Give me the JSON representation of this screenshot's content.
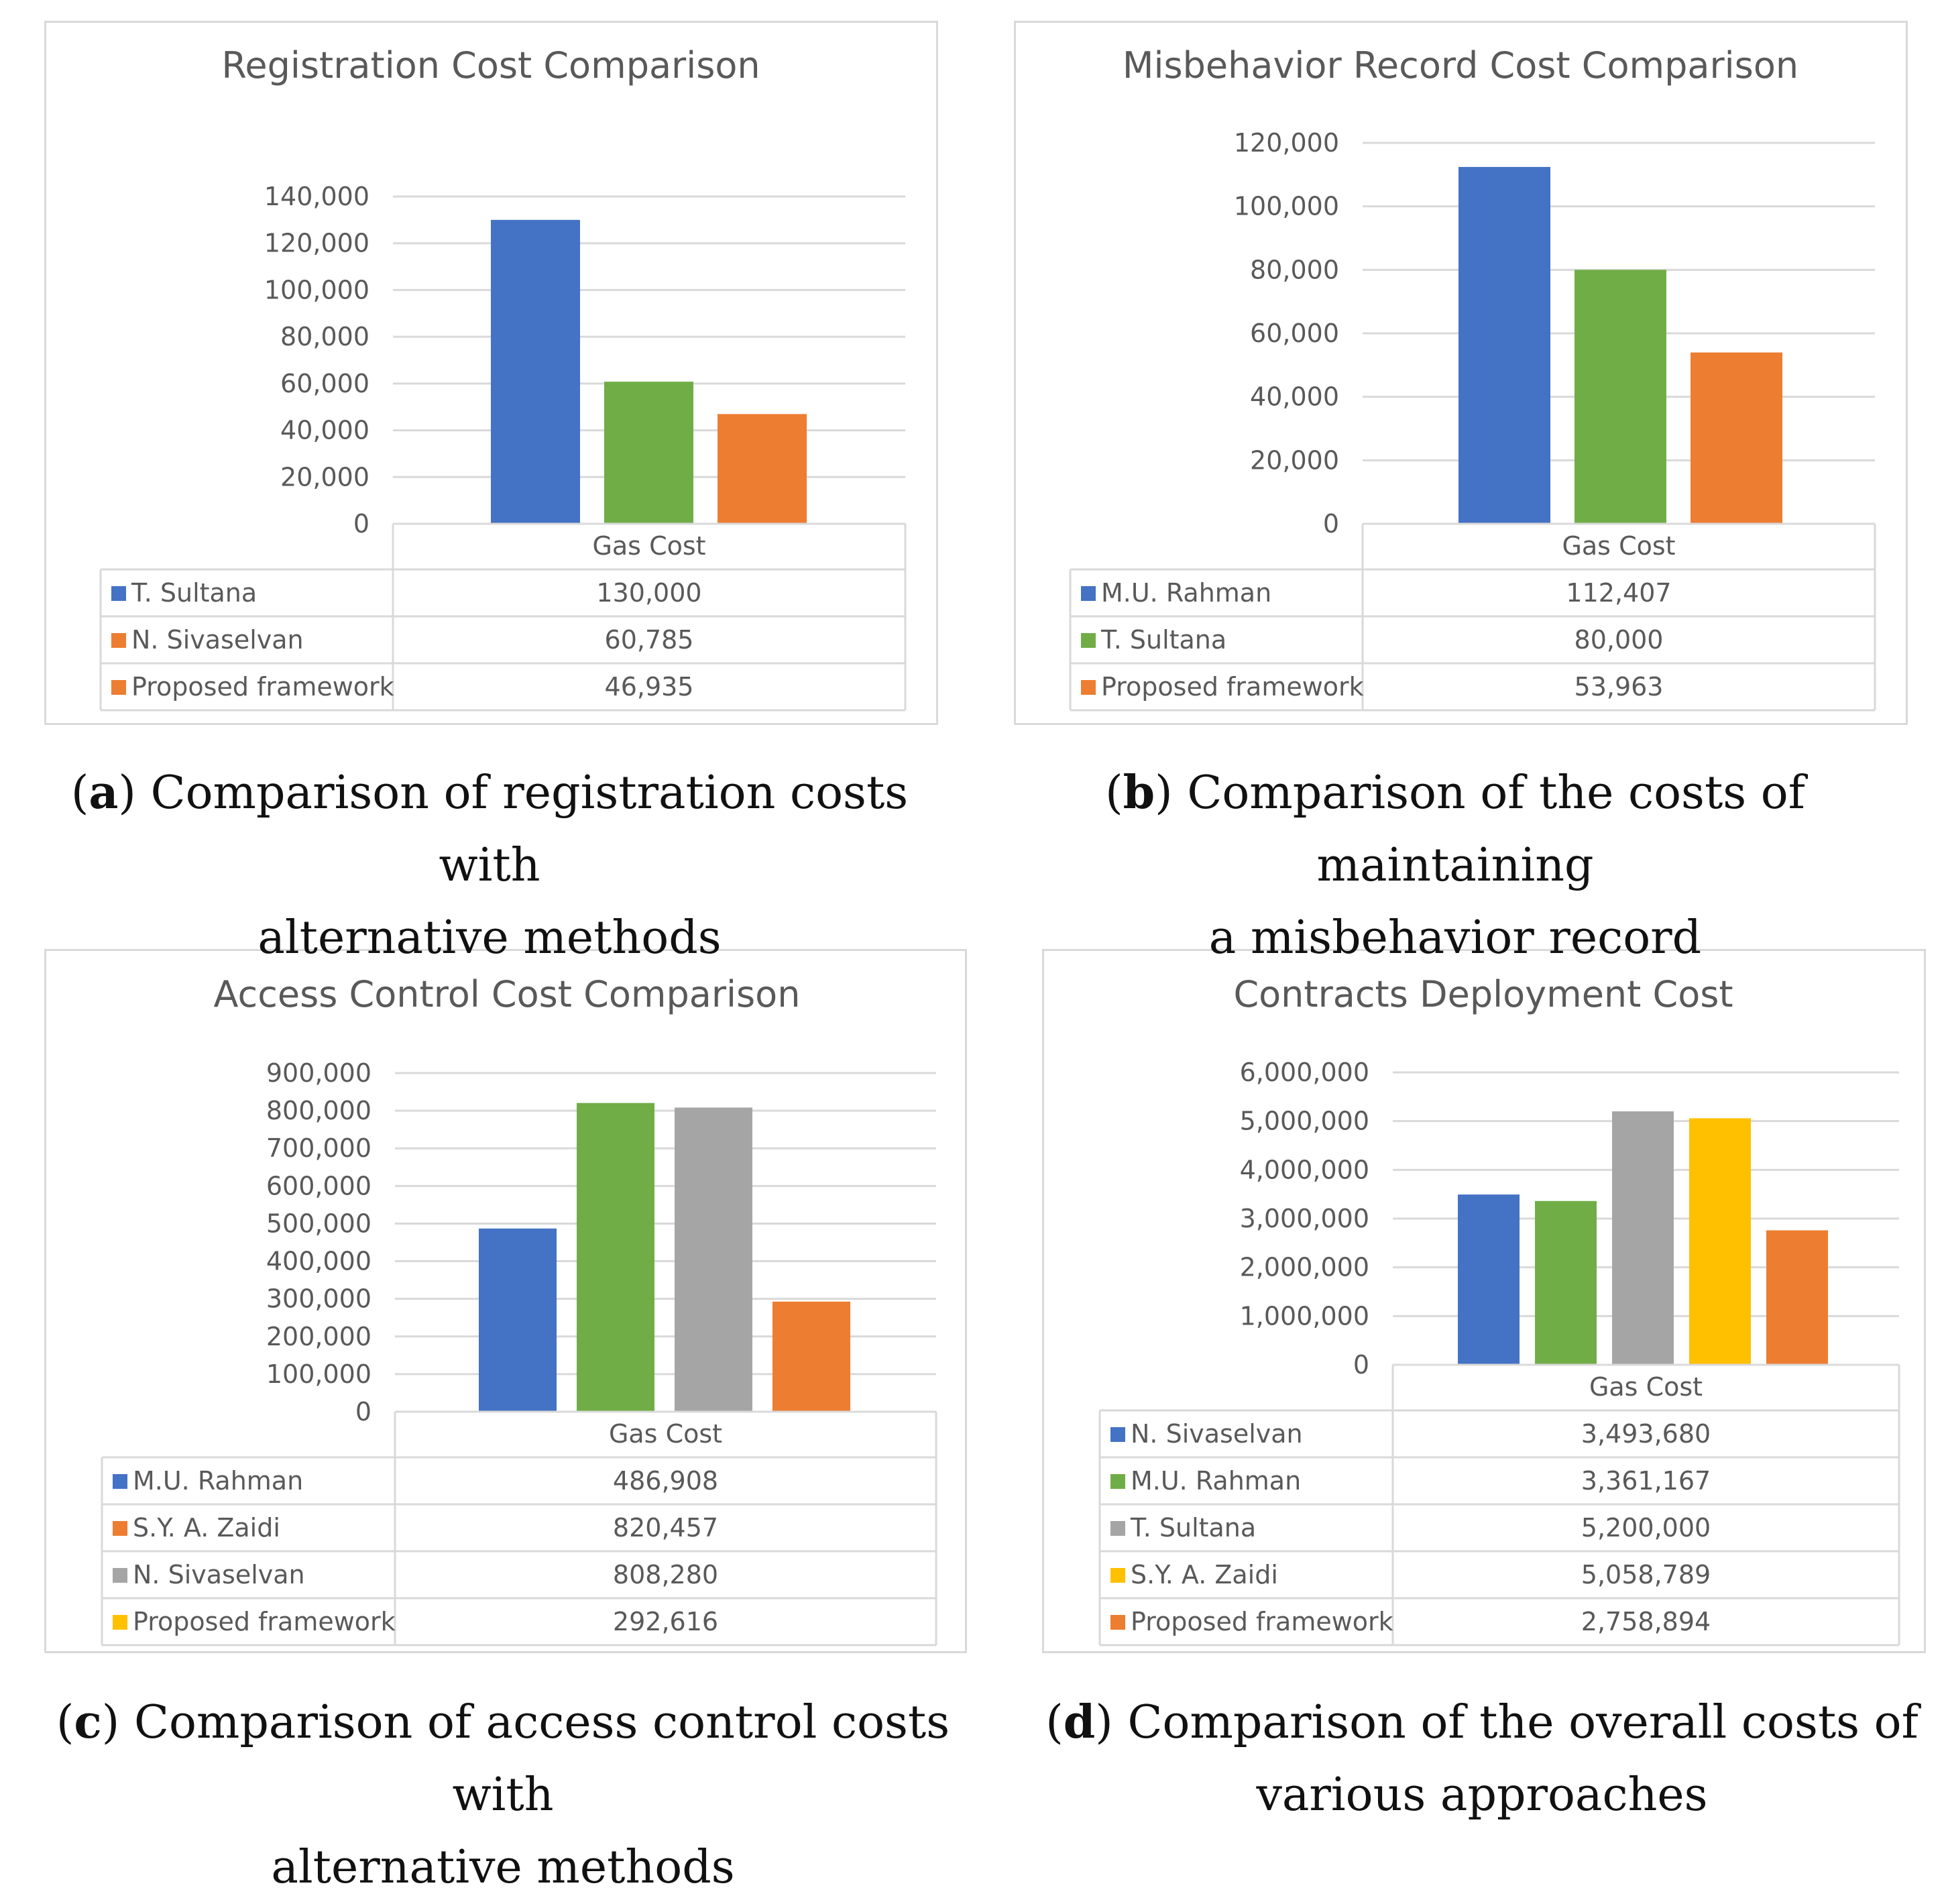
{
  "figure": {
    "panels": [
      {
        "id": "a",
        "caption_letter": "a",
        "caption_line1": "Comparison of registration costs with",
        "caption_line2": "alternative methods",
        "chart_data": {
          "type": "bar",
          "title": "Registration Cost Comparison",
          "categories": [
            "Gas Cost"
          ],
          "series": [
            {
              "name": "T. Sultana",
              "values": [
                130000
              ],
              "value_label": "130,000",
              "bar_color": "#4472c4",
              "legend_color": "#4472c4"
            },
            {
              "name": "N. Sivaselvan",
              "values": [
                60785
              ],
              "value_label": "60,785",
              "bar_color": "#70ad47",
              "legend_color": "#ed7d31"
            },
            {
              "name": "Proposed framework",
              "values": [
                46935
              ],
              "value_label": "46,935",
              "bar_color": "#ed7d31",
              "legend_color": "#ed7d31"
            }
          ],
          "yticks": [
            "0",
            "20,000",
            "40,000",
            "60,000",
            "80,000",
            "100,000",
            "120,000",
            "140,000"
          ],
          "ylim": [
            0,
            140000
          ],
          "xlabel": "",
          "ylabel": "",
          "grid": true,
          "legend": "data-table"
        }
      },
      {
        "id": "b",
        "caption_letter": "b",
        "caption_line1": "Comparison of the costs of maintaining",
        "caption_line2": "a misbehavior record",
        "chart_data": {
          "type": "bar",
          "title": "Misbehavior Record Cost Comparison",
          "categories": [
            "Gas Cost"
          ],
          "series": [
            {
              "name": "M.U. Rahman",
              "values": [
                112407
              ],
              "value_label": "112,407",
              "bar_color": "#4472c4",
              "legend_color": "#4472c4"
            },
            {
              "name": "T. Sultana",
              "values": [
                80000
              ],
              "value_label": "80,000",
              "bar_color": "#70ad47",
              "legend_color": "#70ad47"
            },
            {
              "name": "Proposed framework",
              "values": [
                53963
              ],
              "value_label": "53,963",
              "bar_color": "#ed7d31",
              "legend_color": "#ed7d31"
            }
          ],
          "yticks": [
            "0",
            "20,000",
            "40,000",
            "60,000",
            "80,000",
            "100,000",
            "120,000"
          ],
          "ylim": [
            0,
            120000
          ],
          "xlabel": "",
          "ylabel": "",
          "grid": true,
          "legend": "data-table"
        }
      },
      {
        "id": "c",
        "caption_letter": "c",
        "caption_line1": "Comparison of access control costs with",
        "caption_line2": "alternative methods",
        "chart_data": {
          "type": "bar",
          "title": "Access Control Cost Comparison",
          "categories": [
            "Gas Cost"
          ],
          "series": [
            {
              "name": "M.U. Rahman",
              "values": [
                486908
              ],
              "value_label": "486,908",
              "bar_color": "#4472c4",
              "legend_color": "#4472c4"
            },
            {
              "name": "S.Y. A. Zaidi",
              "values": [
                820457
              ],
              "value_label": "820,457",
              "bar_color": "#70ad47",
              "legend_color": "#ed7d31"
            },
            {
              "name": "N. Sivaselvan",
              "values": [
                808280
              ],
              "value_label": "808,280",
              "bar_color": "#a5a5a5",
              "legend_color": "#a5a5a5"
            },
            {
              "name": "Proposed framework",
              "values": [
                292616
              ],
              "value_label": "292,616",
              "bar_color": "#ed7d31",
              "legend_color": "#ffc000"
            }
          ],
          "yticks": [
            "0",
            "100,000",
            "200,000",
            "300,000",
            "400,000",
            "500,000",
            "600,000",
            "700,000",
            "800,000",
            "900,000"
          ],
          "ylim": [
            0,
            900000
          ],
          "xlabel": "",
          "ylabel": "",
          "grid": true,
          "legend": "data-table"
        }
      },
      {
        "id": "d",
        "caption_letter": "d",
        "caption_line1": "Comparison of the overall costs of",
        "caption_line2": "various approaches",
        "chart_data": {
          "type": "bar",
          "title": "Contracts Deployment Cost",
          "categories": [
            "Gas Cost"
          ],
          "series": [
            {
              "name": "N. Sivaselvan",
              "values": [
                3493680
              ],
              "value_label": "3,493,680",
              "bar_color": "#4472c4",
              "legend_color": "#4472c4"
            },
            {
              "name": "M.U. Rahman",
              "values": [
                3361167
              ],
              "value_label": "3,361,167",
              "bar_color": "#70ad47",
              "legend_color": "#70ad47"
            },
            {
              "name": "T. Sultana",
              "values": [
                5200000
              ],
              "value_label": "5,200,000",
              "bar_color": "#a5a5a5",
              "legend_color": "#a5a5a5"
            },
            {
              "name": "S.Y. A. Zaidi",
              "values": [
                5058789
              ],
              "value_label": "5,058,789",
              "bar_color": "#ffc000",
              "legend_color": "#ffc000"
            },
            {
              "name": "Proposed framework",
              "values": [
                2758894
              ],
              "value_label": "2,758,894",
              "bar_color": "#ed7d31",
              "legend_color": "#ed7d31"
            }
          ],
          "yticks": [
            "0",
            "1,000,000",
            "2,000,000",
            "3,000,000",
            "4,000,000",
            "5,000,000",
            "6,000,000"
          ],
          "ylim": [
            0,
            6000000
          ],
          "xlabel": "",
          "ylabel": "",
          "grid": true,
          "legend": "data-table"
        }
      }
    ]
  }
}
